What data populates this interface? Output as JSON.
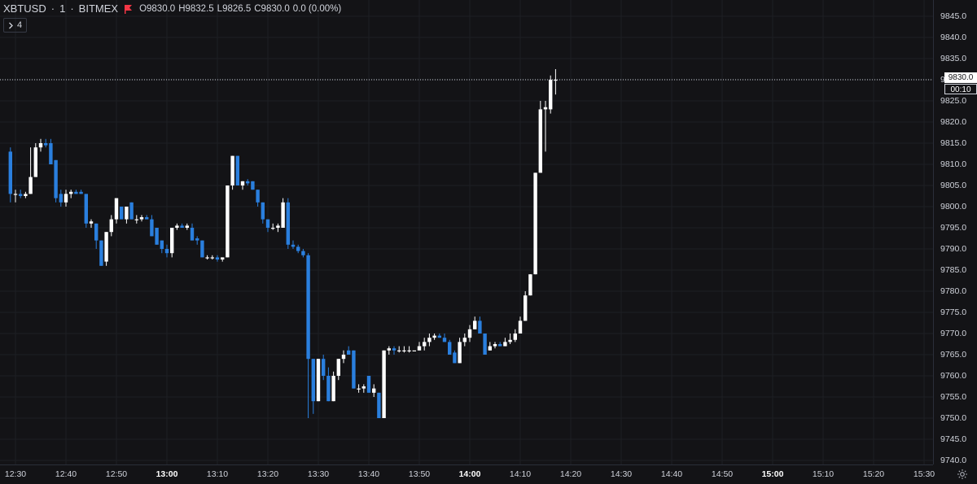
{
  "legend": {
    "symbol": "XBTUSD",
    "interval": "1",
    "exchange": "BITMEX",
    "open": "O9830.0",
    "high": "H9832.5",
    "low": "L9826.5",
    "close": "C9830.0",
    "change": "0.0 (0.00%)",
    "flag_color": "#f23645"
  },
  "indicator_toggle": {
    "icon": "chevron-right-icon",
    "count": "4"
  },
  "last_price": {
    "value": "9830.0",
    "countdown": "00:10"
  },
  "price_axis": {
    "labels": [
      "9845.0",
      "9840.0",
      "9835.0",
      "9830.0",
      "9825.0",
      "9820.0",
      "9815.0",
      "9810.0",
      "9805.0",
      "9800.0",
      "9795.0",
      "9790.0",
      "9785.0",
      "9780.0",
      "9775.0",
      "9770.0",
      "9765.0",
      "9760.0",
      "9755.0",
      "9750.0",
      "9745.0",
      "9740.0"
    ]
  },
  "time_axis": {
    "labels": [
      "12:30",
      "12:40",
      "12:50",
      "13:00",
      "13:10",
      "13:20",
      "13:30",
      "13:40",
      "13:50",
      "14:00",
      "14:10",
      "14:20",
      "14:30",
      "14:40",
      "14:50",
      "15:00",
      "15:10",
      "15:20",
      "15:30"
    ],
    "bold": [
      "13:00",
      "14:00",
      "15:00"
    ]
  },
  "settings_icon": "gear-icon",
  "colors": {
    "background": "#131316",
    "up": "#ffffff",
    "down": "#2a7fde",
    "grid": "#1e1f24"
  },
  "chart_data": {
    "type": "candlestick",
    "symbol": "XBTUSD",
    "interval_minutes": 1,
    "ylim": [
      9740,
      9847
    ],
    "x_range": [
      "12:29",
      "15:34"
    ],
    "grid": true,
    "candles": [
      {
        "t": "12:29",
        "o": 9813,
        "h": 9814,
        "l": 9801,
        "c": 9803
      },
      {
        "t": "12:30",
        "o": 9803,
        "h": 9804,
        "l": 9801,
        "c": 9803
      },
      {
        "t": "12:31",
        "o": 9803,
        "h": 9804,
        "l": 9802,
        "c": 9802.5
      },
      {
        "t": "12:32",
        "o": 9802.5,
        "h": 9803.5,
        "l": 9802,
        "c": 9803
      },
      {
        "t": "12:33",
        "o": 9803,
        "h": 9814,
        "l": 9803,
        "c": 9807
      },
      {
        "t": "12:34",
        "o": 9807,
        "h": 9815,
        "l": 9807,
        "c": 9814
      },
      {
        "t": "12:35",
        "o": 9814,
        "h": 9816,
        "l": 9813,
        "c": 9815
      },
      {
        "t": "12:36",
        "o": 9815,
        "h": 9816,
        "l": 9814,
        "c": 9814.5
      },
      {
        "t": "12:37",
        "o": 9815,
        "h": 9816,
        "l": 9810,
        "c": 9810
      },
      {
        "t": "12:38",
        "o": 9811,
        "h": 9811,
        "l": 9801,
        "c": 9802
      },
      {
        "t": "12:39",
        "o": 9803,
        "h": 9804,
        "l": 9800,
        "c": 9801
      },
      {
        "t": "12:40",
        "o": 9801,
        "h": 9804,
        "l": 9800,
        "c": 9803
      },
      {
        "t": "12:41",
        "o": 9803,
        "h": 9804,
        "l": 9802,
        "c": 9803.5
      },
      {
        "t": "12:42",
        "o": 9803.5,
        "h": 9804,
        "l": 9803,
        "c": 9803
      },
      {
        "t": "12:43",
        "o": 9803.5,
        "h": 9804,
        "l": 9803,
        "c": 9803
      },
      {
        "t": "12:44",
        "o": 9803,
        "h": 9803,
        "l": 9795,
        "c": 9796
      },
      {
        "t": "12:45",
        "o": 9796,
        "h": 9797,
        "l": 9795,
        "c": 9796.5
      },
      {
        "t": "12:46",
        "o": 9796,
        "h": 9796,
        "l": 9790,
        "c": 9792
      },
      {
        "t": "12:47",
        "o": 9792,
        "h": 9792,
        "l": 9786,
        "c": 9786
      },
      {
        "t": "12:48",
        "o": 9787,
        "h": 9794,
        "l": 9786,
        "c": 9794
      },
      {
        "t": "12:49",
        "o": 9794,
        "h": 9798,
        "l": 9793,
        "c": 9797
      },
      {
        "t": "12:50",
        "o": 9797,
        "h": 9802,
        "l": 9796,
        "c": 9802
      },
      {
        "t": "12:51",
        "o": 9800,
        "h": 9800,
        "l": 9797,
        "c": 9797
      },
      {
        "t": "12:52",
        "o": 9797,
        "h": 9800,
        "l": 9796,
        "c": 9800
      },
      {
        "t": "12:53",
        "o": 9801,
        "h": 9801,
        "l": 9797,
        "c": 9797
      },
      {
        "t": "12:54",
        "o": 9797,
        "h": 9798,
        "l": 9796,
        "c": 9797
      },
      {
        "t": "12:55",
        "o": 9797,
        "h": 9798,
        "l": 9796.5,
        "c": 9797.5
      },
      {
        "t": "12:56",
        "o": 9797.5,
        "h": 9798,
        "l": 9797,
        "c": 9797
      },
      {
        "t": "12:57",
        "o": 9797,
        "h": 9798,
        "l": 9793,
        "c": 9793
      },
      {
        "t": "12:58",
        "o": 9795,
        "h": 9795,
        "l": 9791,
        "c": 9791
      },
      {
        "t": "12:59",
        "o": 9792,
        "h": 9792,
        "l": 9789,
        "c": 9790
      },
      {
        "t": "13:00",
        "o": 9790,
        "h": 9791,
        "l": 9788,
        "c": 9789
      },
      {
        "t": "13:01",
        "o": 9789,
        "h": 9795,
        "l": 9788,
        "c": 9795
      },
      {
        "t": "13:02",
        "o": 9795,
        "h": 9796,
        "l": 9794.5,
        "c": 9795.5
      },
      {
        "t": "13:03",
        "o": 9795.5,
        "h": 9796,
        "l": 9795,
        "c": 9795
      },
      {
        "t": "13:04",
        "o": 9795,
        "h": 9796,
        "l": 9794.5,
        "c": 9795.5
      },
      {
        "t": "13:05",
        "o": 9795,
        "h": 9796,
        "l": 9792,
        "c": 9792
      },
      {
        "t": "13:06",
        "o": 9792.5,
        "h": 9793,
        "l": 9791,
        "c": 9792
      },
      {
        "t": "13:07",
        "o": 9792,
        "h": 9792,
        "l": 9788,
        "c": 9788
      },
      {
        "t": "13:08",
        "o": 9788,
        "h": 9788.5,
        "l": 9787.5,
        "c": 9788
      },
      {
        "t": "13:09",
        "o": 9788,
        "h": 9788.5,
        "l": 9787.5,
        "c": 9788
      },
      {
        "t": "13:10",
        "o": 9788,
        "h": 9788.5,
        "l": 9787,
        "c": 9787.5
      },
      {
        "t": "13:11",
        "o": 9787.5,
        "h": 9788,
        "l": 9787,
        "c": 9788
      },
      {
        "t": "13:12",
        "o": 9788,
        "h": 9805,
        "l": 9788,
        "c": 9805
      },
      {
        "t": "13:13",
        "o": 9805,
        "h": 9812,
        "l": 9804,
        "c": 9812
      },
      {
        "t": "13:14",
        "o": 9812,
        "h": 9812,
        "l": 9805,
        "c": 9805
      },
      {
        "t": "13:15",
        "o": 9805,
        "h": 9806,
        "l": 9804,
        "c": 9806
      },
      {
        "t": "13:16",
        "o": 9806,
        "h": 9806.5,
        "l": 9805,
        "c": 9805.5
      },
      {
        "t": "13:17",
        "o": 9806,
        "h": 9806,
        "l": 9804,
        "c": 9804
      },
      {
        "t": "13:18",
        "o": 9804,
        "h": 9804,
        "l": 9800,
        "c": 9801
      },
      {
        "t": "13:19",
        "o": 9801,
        "h": 9801,
        "l": 9796,
        "c": 9797
      },
      {
        "t": "13:20",
        "o": 9797,
        "h": 9797,
        "l": 9794,
        "c": 9795
      },
      {
        "t": "13:21",
        "o": 9795,
        "h": 9796,
        "l": 9794.5,
        "c": 9795
      },
      {
        "t": "13:22",
        "o": 9795,
        "h": 9796,
        "l": 9794,
        "c": 9795.5
      },
      {
        "t": "13:23",
        "o": 9795,
        "h": 9802,
        "l": 9795,
        "c": 9801
      },
      {
        "t": "13:24",
        "o": 9801,
        "h": 9802,
        "l": 9790,
        "c": 9791
      },
      {
        "t": "13:25",
        "o": 9791,
        "h": 9792,
        "l": 9790,
        "c": 9790.5
      },
      {
        "t": "13:26",
        "o": 9790.5,
        "h": 9791,
        "l": 9789,
        "c": 9789.5
      },
      {
        "t": "13:27",
        "o": 9789.5,
        "h": 9790,
        "l": 9788,
        "c": 9788.5
      },
      {
        "t": "13:28",
        "o": 9788.5,
        "h": 9789,
        "l": 9750,
        "c": 9764
      },
      {
        "t": "13:29",
        "o": 9764,
        "h": 9764,
        "l": 9751,
        "c": 9754
      },
      {
        "t": "13:30",
        "o": 9754,
        "h": 9764,
        "l": 9754,
        "c": 9764
      },
      {
        "t": "13:31",
        "o": 9764,
        "h": 9765,
        "l": 9759,
        "c": 9760
      },
      {
        "t": "13:32",
        "o": 9760,
        "h": 9762,
        "l": 9754,
        "c": 9754
      },
      {
        "t": "13:33",
        "o": 9754,
        "h": 9761,
        "l": 9754,
        "c": 9760
      },
      {
        "t": "13:34",
        "o": 9760,
        "h": 9764,
        "l": 9759,
        "c": 9764
      },
      {
        "t": "13:35",
        "o": 9764,
        "h": 9766,
        "l": 9763,
        "c": 9765
      },
      {
        "t": "13:36",
        "o": 9766,
        "h": 9767,
        "l": 9765,
        "c": 9765
      },
      {
        "t": "13:37",
        "o": 9766,
        "h": 9766,
        "l": 9757,
        "c": 9757
      },
      {
        "t": "13:38",
        "o": 9757,
        "h": 9758,
        "l": 9756,
        "c": 9757
      },
      {
        "t": "13:39",
        "o": 9757,
        "h": 9758,
        "l": 9756,
        "c": 9757.5
      },
      {
        "t": "13:40",
        "o": 9760,
        "h": 9760,
        "l": 9756,
        "c": 9756
      },
      {
        "t": "13:41",
        "o": 9756,
        "h": 9758,
        "l": 9755,
        "c": 9757
      },
      {
        "t": "13:42",
        "o": 9756,
        "h": 9756,
        "l": 9750,
        "c": 9750
      },
      {
        "t": "13:43",
        "o": 9750,
        "h": 9766,
        "l": 9750,
        "c": 9766
      },
      {
        "t": "13:44",
        "o": 9766,
        "h": 9767,
        "l": 9765,
        "c": 9766.5
      },
      {
        "t": "13:45",
        "o": 9766.5,
        "h": 9767,
        "l": 9765,
        "c": 9766
      },
      {
        "t": "13:46",
        "o": 9766,
        "h": 9767,
        "l": 9765.5,
        "c": 9766
      },
      {
        "t": "13:47",
        "o": 9766,
        "h": 9767,
        "l": 9765.5,
        "c": 9766
      },
      {
        "t": "13:48",
        "o": 9766,
        "h": 9767,
        "l": 9765.5,
        "c": 9766
      },
      {
        "t": "13:49",
        "o": 9766,
        "h": 9766,
        "l": 9766,
        "c": 9766
      },
      {
        "t": "13:50",
        "o": 9766,
        "h": 9768,
        "l": 9766,
        "c": 9767
      },
      {
        "t": "13:51",
        "o": 9767,
        "h": 9769,
        "l": 9766,
        "c": 9768
      },
      {
        "t": "13:52",
        "o": 9768,
        "h": 9770,
        "l": 9767,
        "c": 9769
      },
      {
        "t": "13:53",
        "o": 9769,
        "h": 9770,
        "l": 9768.5,
        "c": 9769.5
      },
      {
        "t": "13:54",
        "o": 9769.5,
        "h": 9770,
        "l": 9769,
        "c": 9769
      },
      {
        "t": "13:55",
        "o": 9769,
        "h": 9770,
        "l": 9768,
        "c": 9768
      },
      {
        "t": "13:56",
        "o": 9768,
        "h": 9768.5,
        "l": 9765,
        "c": 9765
      },
      {
        "t": "13:57",
        "o": 9765.5,
        "h": 9766,
        "l": 9763,
        "c": 9763
      },
      {
        "t": "13:58",
        "o": 9763,
        "h": 9769,
        "l": 9763,
        "c": 9768
      },
      {
        "t": "13:59",
        "o": 9768,
        "h": 9770,
        "l": 9767,
        "c": 9769
      },
      {
        "t": "14:00",
        "o": 9769,
        "h": 9772,
        "l": 9768,
        "c": 9771
      },
      {
        "t": "14:01",
        "o": 9771,
        "h": 9774,
        "l": 9771,
        "c": 9773
      },
      {
        "t": "14:02",
        "o": 9773,
        "h": 9774,
        "l": 9770,
        "c": 9770
      },
      {
        "t": "14:03",
        "o": 9770,
        "h": 9770,
        "l": 9765,
        "c": 9765
      },
      {
        "t": "14:04",
        "o": 9766,
        "h": 9768,
        "l": 9766,
        "c": 9767
      },
      {
        "t": "14:05",
        "o": 9767,
        "h": 9768,
        "l": 9766.5,
        "c": 9767.5
      },
      {
        "t": "14:06",
        "o": 9767.5,
        "h": 9768,
        "l": 9767,
        "c": 9767
      },
      {
        "t": "14:07",
        "o": 9767,
        "h": 9769,
        "l": 9767,
        "c": 9768
      },
      {
        "t": "14:08",
        "o": 9768,
        "h": 9770,
        "l": 9767.5,
        "c": 9768.5
      },
      {
        "t": "14:09",
        "o": 9768.5,
        "h": 9771,
        "l": 9768,
        "c": 9770
      },
      {
        "t": "14:10",
        "o": 9770,
        "h": 9774,
        "l": 9770,
        "c": 9773
      },
      {
        "t": "14:11",
        "o": 9773,
        "h": 9780,
        "l": 9773,
        "c": 9779
      },
      {
        "t": "14:12",
        "o": 9779,
        "h": 9784,
        "l": 9779,
        "c": 9784
      },
      {
        "t": "14:13",
        "o": 9784,
        "h": 9808,
        "l": 9784,
        "c": 9808
      },
      {
        "t": "14:14",
        "o": 9808,
        "h": 9825,
        "l": 9808,
        "c": 9823
      },
      {
        "t": "14:15",
        "o": 9823,
        "h": 9825,
        "l": 9813,
        "c": 9823.5
      },
      {
        "t": "14:16",
        "o": 9823,
        "h": 9831,
        "l": 9822,
        "c": 9830
      },
      {
        "t": "14:17",
        "o": 9830,
        "h": 9832.5,
        "l": 9826.5,
        "c": 9830
      }
    ]
  }
}
